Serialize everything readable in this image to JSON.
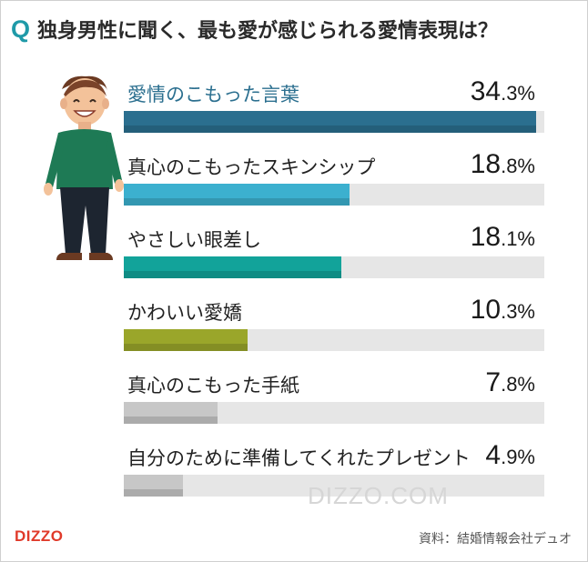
{
  "header": {
    "q_mark": "Q",
    "title": "独身男性に聞く、最も愛が感じられる愛情表現は？"
  },
  "chart_data": {
    "type": "bar",
    "orientation": "horizontal",
    "xlim": [
      0,
      35
    ],
    "categories": [
      "愛情のこもった言葉",
      "真心のこもったスキンシップ",
      "やさしい眼差し",
      "かわいい愛嬌",
      "真心のこもった手紙",
      "自分のために準備してくれたプレゼント"
    ],
    "values": [
      34.3,
      18.8,
      18.1,
      10.3,
      7.8,
      4.9
    ],
    "value_num_labels": [
      "34",
      "18",
      "18",
      "10",
      "7",
      "4"
    ],
    "value_pct_labels": [
      ".3%",
      ".8%",
      ".1%",
      ".3%",
      ".8%",
      ".9%"
    ],
    "colors": [
      "#2b6f8f",
      "#3cb0cf",
      "#12a39a",
      "#9aa62a",
      "#c7c7c7",
      "#c7c7c7"
    ],
    "track_color": "#e6e6e6"
  },
  "watermark": "DIZZO.COM",
  "logo": "DIZZO",
  "source": "資料：結婚情報会社デュオ"
}
